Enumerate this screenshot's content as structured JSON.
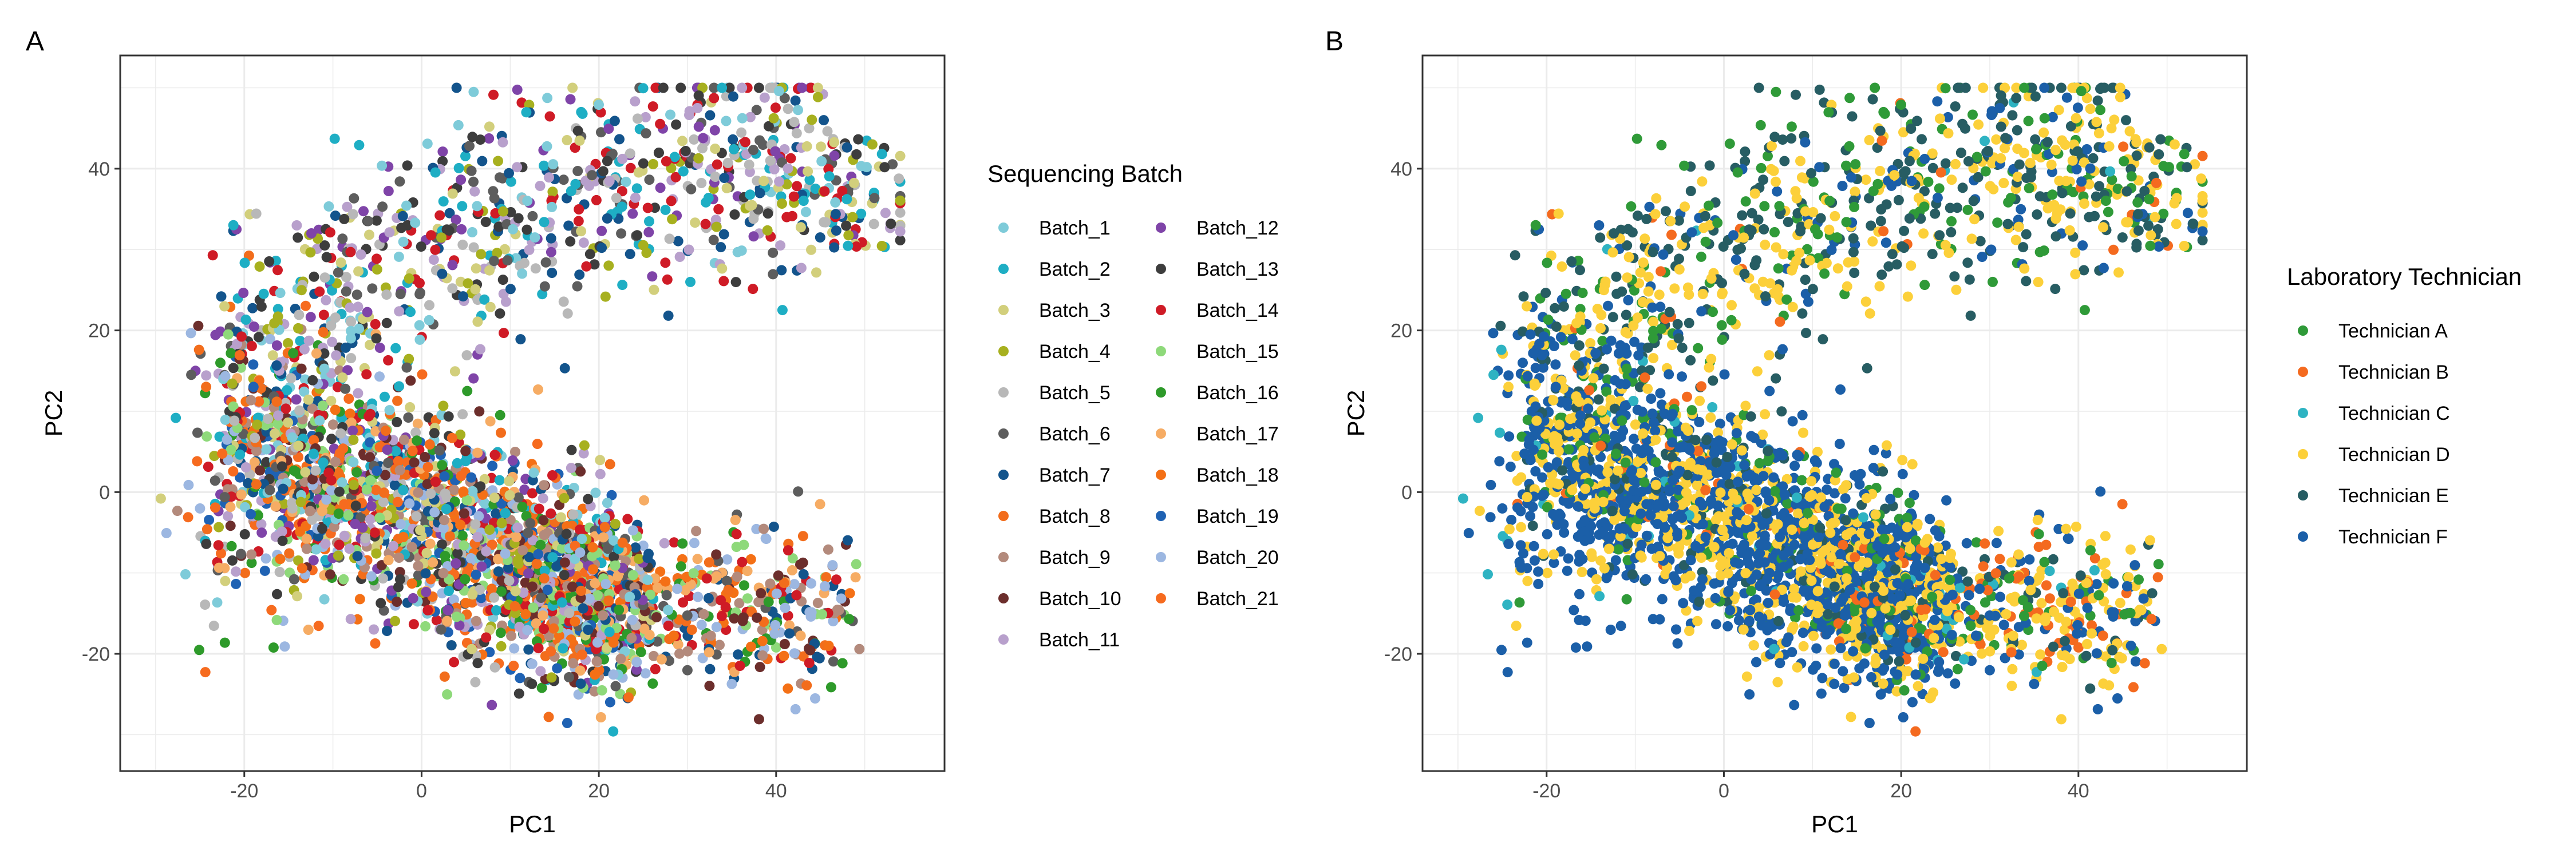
{
  "panels": [
    {
      "tag": "A",
      "xlabel": "PC1",
      "ylabel": "PC2",
      "legend_title": "Sequencing Batch",
      "legend_columns": 2,
      "legend_placement": "right",
      "groups": [
        {
          "name": "Batch_1",
          "color": "#7ecbd9"
        },
        {
          "name": "Batch_2",
          "color": "#1eaec4"
        },
        {
          "name": "Batch_3",
          "color": "#d2cf7c"
        },
        {
          "name": "Batch_4",
          "color": "#a7b01f"
        },
        {
          "name": "Batch_5",
          "color": "#b8b8b8"
        },
        {
          "name": "Batch_6",
          "color": "#5d5d5d"
        },
        {
          "name": "Batch_7",
          "color": "#13548c"
        },
        {
          "name": "Batch_8",
          "color": "#f26d1c"
        },
        {
          "name": "Batch_9",
          "color": "#b38a7c"
        },
        {
          "name": "Batch_10",
          "color": "#6c2e2c"
        },
        {
          "name": "Batch_11",
          "color": "#b8a0cc"
        },
        {
          "name": "Batch_12",
          "color": "#7f44a8"
        },
        {
          "name": "Batch_13",
          "color": "#3d3d3d"
        },
        {
          "name": "Batch_14",
          "color": "#cf1b26"
        },
        {
          "name": "Batch_15",
          "color": "#8ed97a"
        },
        {
          "name": "Batch_16",
          "color": "#2e9a2a"
        },
        {
          "name": "Batch_17",
          "color": "#f6ac64"
        },
        {
          "name": "Batch_18",
          "color": "#f47016"
        },
        {
          "name": "Batch_19",
          "color": "#1f62b3"
        },
        {
          "name": "Batch_20",
          "color": "#9cb7e1"
        },
        {
          "name": "Batch_21",
          "color": "#f66b1f"
        }
      ]
    },
    {
      "tag": "B",
      "xlabel": "PC1",
      "ylabel": "PC2",
      "legend_title": "Laboratory Technician",
      "legend_columns": 1,
      "legend_placement": "right",
      "groups": [
        {
          "name": "Technician A",
          "color": "#2f9a38"
        },
        {
          "name": "Technician B",
          "color": "#f46a1f"
        },
        {
          "name": "Technician C",
          "color": "#2eb3c2"
        },
        {
          "name": "Technician D",
          "color": "#fcd03a"
        },
        {
          "name": "Technician E",
          "color": "#275d63"
        },
        {
          "name": "Technician F",
          "color": "#1b5fa8"
        }
      ]
    }
  ],
  "chart_data": [
    {
      "type": "scatter",
      "panel": "A",
      "title": "",
      "xlabel": "PC1",
      "ylabel": "PC2",
      "xlim": [
        -34,
        59
      ],
      "ylim": [
        -34.5,
        54
      ],
      "xticks": [
        -20,
        0,
        20,
        40
      ],
      "yticks": [
        -20,
        0,
        20,
        40
      ],
      "grid": true,
      "legend": "right",
      "color_by": "Sequencing Batch",
      "n_points_approx": 3500,
      "clusters": [
        {
          "label": "lower-left dense cloud",
          "x_range": [
            -30,
            28
          ],
          "y_range": [
            -29,
            24
          ]
        },
        {
          "label": "upper arc",
          "x_range": [
            -22,
            54
          ],
          "y_range": [
            -2,
            50
          ]
        },
        {
          "label": "right lower tail",
          "x_range": [
            10,
            48
          ],
          "y_range": [
            -31,
            -4
          ]
        }
      ],
      "series": [
        "Batch_1",
        "Batch_2",
        "Batch_3",
        "Batch_4",
        "Batch_5",
        "Batch_6",
        "Batch_7",
        "Batch_8",
        "Batch_9",
        "Batch_10",
        "Batch_11",
        "Batch_12",
        "Batch_13",
        "Batch_14",
        "Batch_15",
        "Batch_16",
        "Batch_17",
        "Batch_18",
        "Batch_19",
        "Batch_20",
        "Batch_21"
      ],
      "seed": 11
    },
    {
      "type": "scatter",
      "panel": "B",
      "title": "",
      "xlabel": "PC1",
      "ylabel": "PC2",
      "xlim": [
        -34,
        59
      ],
      "ylim": [
        -34.5,
        54
      ],
      "xticks": [
        -20,
        0,
        20,
        40
      ],
      "yticks": [
        -20,
        0,
        20,
        40
      ],
      "grid": true,
      "legend": "right",
      "color_by": "Laboratory Technician",
      "n_points_approx": 3500,
      "clusters": [
        {
          "label": "lower-left dense cloud",
          "x_range": [
            -30,
            28
          ],
          "y_range": [
            -29,
            24
          ]
        },
        {
          "label": "upper arc",
          "x_range": [
            -22,
            54
          ],
          "y_range": [
            -2,
            50
          ]
        },
        {
          "label": "right lower tail",
          "x_range": [
            10,
            48
          ],
          "y_range": [
            -31,
            -4
          ]
        }
      ],
      "series": [
        "Technician A",
        "Technician B",
        "Technician C",
        "Technician D",
        "Technician E",
        "Technician F"
      ],
      "seed": 11
    }
  ]
}
